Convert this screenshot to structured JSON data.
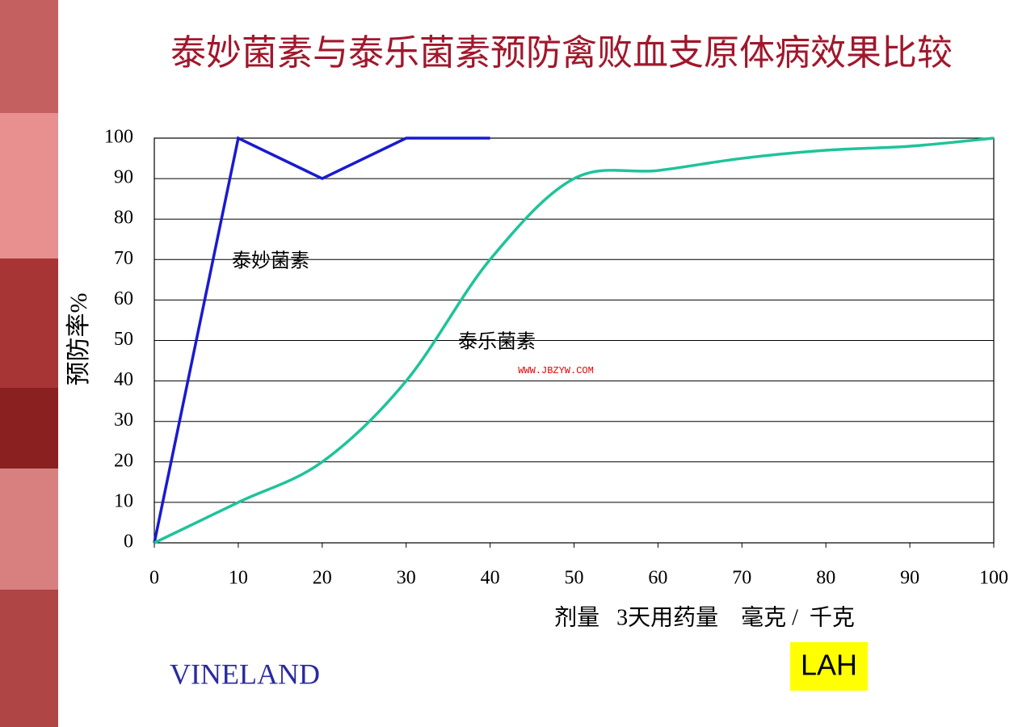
{
  "chart_data": {
    "type": "line",
    "title": "泰妙菌素与泰乐菌素预防禽败血支原体病效果比较",
    "x_label": "剂量   3天用药量    毫克 /  千克",
    "y_label": "预防率%",
    "series": [
      {
        "name": "泰妙菌素",
        "color": "#1a1ad0",
        "x": [
          0,
          10,
          20,
          30,
          40
        ],
        "values": [
          0,
          100,
          90,
          100,
          100
        ]
      },
      {
        "name": "泰乐菌素",
        "color": "#1fc39a",
        "x": [
          0,
          10,
          20,
          30,
          40,
          50,
          60,
          70,
          80,
          90,
          100
        ],
        "values": [
          0,
          10,
          20,
          40,
          70,
          90,
          92,
          95,
          97,
          98,
          100
        ]
      }
    ],
    "xlim": [
      0,
      100
    ],
    "xticks": [
      0,
      10,
      20,
      30,
      40,
      50,
      60,
      70,
      80,
      90,
      100
    ],
    "ylim": [
      0,
      100
    ],
    "yticks": [
      0,
      10,
      20,
      30,
      40,
      50,
      60,
      70,
      80,
      90,
      100
    ],
    "grid": true,
    "watermark": "WWW.JBZYW.COM",
    "brand": "VINELAND",
    "logo": "LAH"
  }
}
